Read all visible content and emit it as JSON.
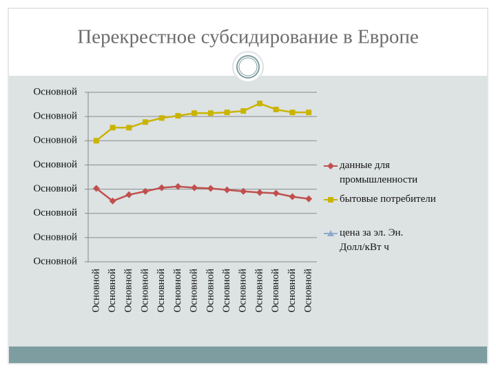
{
  "chart_data": {
    "type": "line",
    "title": "Перекрестное субсидирование в Европе",
    "categories": [
      "Основной",
      "Основной",
      "Основной",
      "Основной",
      "Основной",
      "Основной",
      "Основной",
      "Основной",
      "Основной",
      "Основной",
      "Основной",
      "Основной",
      "Основной",
      "Основной"
    ],
    "series": [
      {
        "name": "данные для промышленности",
        "color": "#c0504d",
        "marker": "diamond",
        "values": [
          3.03,
          2.51,
          2.77,
          2.91,
          3.06,
          3.11,
          3.06,
          3.03,
          2.97,
          2.91,
          2.86,
          2.83,
          2.69,
          2.6
        ]
      },
      {
        "name": "бытовые потребители",
        "color": "#c9b400",
        "marker": "square",
        "values": [
          5.0,
          5.54,
          5.54,
          5.77,
          5.94,
          6.03,
          6.14,
          6.14,
          6.17,
          6.23,
          6.54,
          6.29,
          6.17,
          6.17
        ]
      },
      {
        "name": "цена за эл. Эн. Долл/кВт ч",
        "color": "#8eaacb",
        "marker": "triangle",
        "values": [
          null,
          null,
          null,
          null,
          null,
          null,
          null,
          null,
          null,
          null,
          null,
          null,
          null,
          null
        ]
      }
    ],
    "ylim": [
      0,
      7
    ],
    "yticks": [
      {
        "value": 0,
        "label": "Основной"
      },
      {
        "value": 1,
        "label": "Основной"
      },
      {
        "value": 2,
        "label": "Основной"
      },
      {
        "value": 3,
        "label": "Основной"
      },
      {
        "value": 4,
        "label": "Основной"
      },
      {
        "value": 5,
        "label": "Основной"
      },
      {
        "value": 6,
        "label": "Основной"
      },
      {
        "value": 7,
        "label": "Основной"
      }
    ],
    "grid": true,
    "legend": "right"
  }
}
